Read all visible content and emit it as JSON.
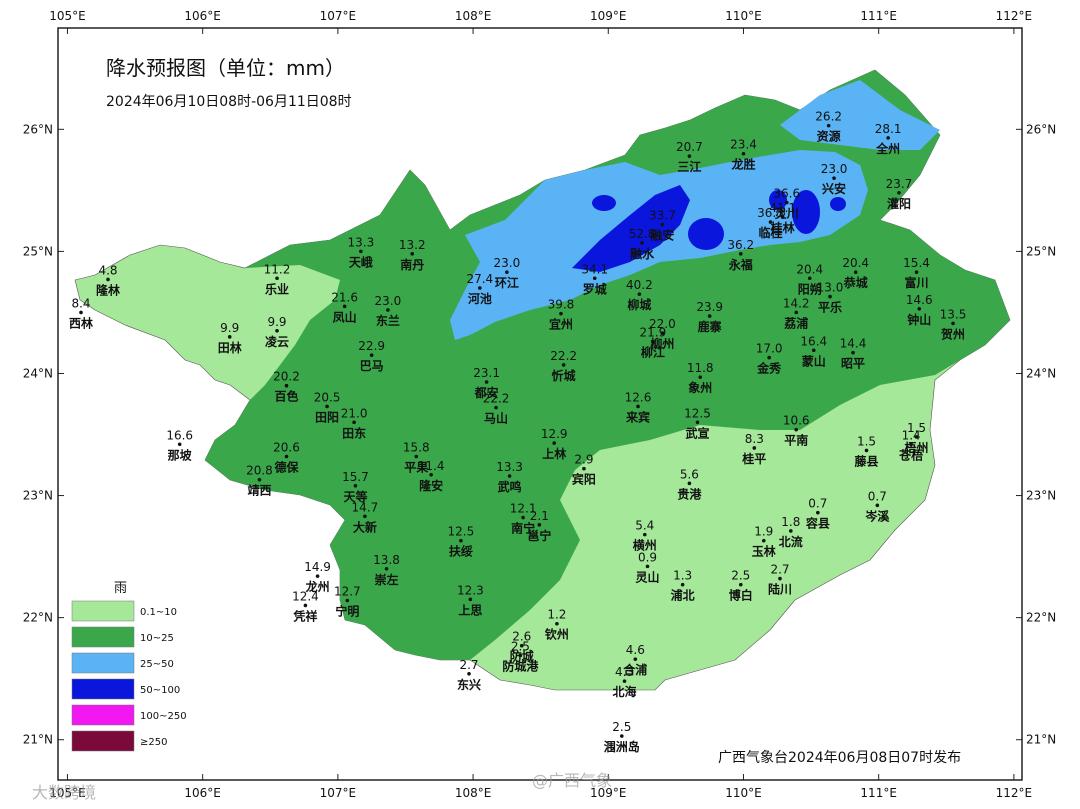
{
  "title": "降水预报图（单位：mm）",
  "subtitle": "2024年06月10日08时-06月11日08时",
  "footer": "广西气象台2024年06月08日07时发布",
  "watermarks": [
    "大数跨境",
    "@广西气象"
  ],
  "colors": {
    "level1": "#a6e89a",
    "level2": "#3aa84a",
    "level3": "#5ab3f5",
    "level4": "#0a16dc",
    "level5": "#f218f2",
    "level6": "#7a0a3a"
  },
  "legend": {
    "title": "雨",
    "items": [
      {
        "label": "0.1~10",
        "color": "#a6e89a"
      },
      {
        "label": "10~25",
        "color": "#3aa84a"
      },
      {
        "label": "25~50",
        "color": "#5ab3f5"
      },
      {
        "label": "50~100",
        "color": "#0a16dc"
      },
      {
        "label": "100~250",
        "color": "#f218f2"
      },
      {
        "label": "≥250",
        "color": "#7a0a3a"
      }
    ]
  },
  "axes": {
    "lon_ticks": [
      "105°E",
      "106°E",
      "107°E",
      "108°E",
      "109°E",
      "110°E",
      "111°E",
      "112°E"
    ],
    "lat_ticks": [
      "26°N",
      "25°N",
      "24°N",
      "23°N",
      "22°N",
      "21°N"
    ],
    "lon_range": [
      104.93,
      112.06
    ],
    "lat_range": [
      20.67,
      26.83
    ]
  },
  "stations": [
    {
      "name": "隆林",
      "value": "4.8",
      "lon": 105.3,
      "lat": 24.77
    },
    {
      "name": "西林",
      "value": "8.4",
      "lon": 105.1,
      "lat": 24.5
    },
    {
      "name": "田林",
      "value": "9.9",
      "lon": 106.2,
      "lat": 24.3
    },
    {
      "name": "乐业",
      "value": "11.2",
      "lon": 106.55,
      "lat": 24.78
    },
    {
      "name": "凌云",
      "value": "9.9",
      "lon": 106.55,
      "lat": 24.35
    },
    {
      "name": "天峨",
      "value": "13.3",
      "lon": 107.17,
      "lat": 25.0
    },
    {
      "name": "南丹",
      "value": "13.2",
      "lon": 107.55,
      "lat": 24.98
    },
    {
      "name": "凤山",
      "value": "21.6",
      "lon": 107.05,
      "lat": 24.55
    },
    {
      "name": "东兰",
      "value": "23.0",
      "lon": 107.37,
      "lat": 24.52
    },
    {
      "name": "巴马",
      "value": "22.9",
      "lon": 107.25,
      "lat": 24.15
    },
    {
      "name": "河池",
      "value": "27.4",
      "lon": 108.05,
      "lat": 24.7
    },
    {
      "name": "环江",
      "value": "23.0",
      "lon": 108.25,
      "lat": 24.83
    },
    {
      "name": "罗城",
      "value": "34.1",
      "lon": 108.9,
      "lat": 24.78
    },
    {
      "name": "融安",
      "value": "33.7",
      "lon": 109.4,
      "lat": 25.22
    },
    {
      "name": "融水",
      "value": "52.8",
      "lon": 109.25,
      "lat": 25.07
    },
    {
      "name": "宜州",
      "value": "39.8",
      "lon": 108.65,
      "lat": 24.49
    },
    {
      "name": "柳城",
      "value": "40.2",
      "lon": 109.23,
      "lat": 24.65
    },
    {
      "name": "柳州",
      "value": "22.0",
      "lon": 109.4,
      "lat": 24.33
    },
    {
      "name": "柳江",
      "value": "21.9",
      "lon": 109.33,
      "lat": 24.26
    },
    {
      "name": "鹿寨",
      "value": "23.9",
      "lon": 109.75,
      "lat": 24.47
    },
    {
      "name": "三江",
      "value": "20.7",
      "lon": 109.6,
      "lat": 25.78
    },
    {
      "name": "龙胜",
      "value": "23.4",
      "lon": 110.0,
      "lat": 25.8
    },
    {
      "name": "资源",
      "value": "26.2",
      "lon": 110.63,
      "lat": 26.03
    },
    {
      "name": "全州",
      "value": "28.1",
      "lon": 111.07,
      "lat": 25.93
    },
    {
      "name": "兴安",
      "value": "23.0",
      "lon": 110.67,
      "lat": 25.6
    },
    {
      "name": "灌阳",
      "value": "23.7",
      "lon": 111.15,
      "lat": 25.48
    },
    {
      "name": "灵川",
      "value": "36.6",
      "lon": 110.32,
      "lat": 25.4
    },
    {
      "name": "桂林",
      "value": "41.1",
      "lon": 110.29,
      "lat": 25.28
    },
    {
      "name": "临桂",
      "value": "36.3",
      "lon": 110.2,
      "lat": 25.24
    },
    {
      "name": "阳朔",
      "value": "20.4",
      "lon": 110.49,
      "lat": 24.78
    },
    {
      "name": "永福",
      "value": "36.2",
      "lon": 109.98,
      "lat": 24.98
    },
    {
      "name": "荔浦",
      "value": "14.2",
      "lon": 110.39,
      "lat": 24.5
    },
    {
      "name": "恭城",
      "value": "20.4",
      "lon": 110.83,
      "lat": 24.83
    },
    {
      "name": "平乐",
      "value": "13.0",
      "lon": 110.64,
      "lat": 24.63
    },
    {
      "name": "富川",
      "value": "15.4",
      "lon": 111.28,
      "lat": 24.83
    },
    {
      "name": "钟山",
      "value": "14.6",
      "lon": 111.3,
      "lat": 24.53
    },
    {
      "name": "贺州",
      "value": "13.5",
      "lon": 111.55,
      "lat": 24.41
    },
    {
      "name": "金秀",
      "value": "17.0",
      "lon": 110.19,
      "lat": 24.13
    },
    {
      "name": "蒙山",
      "value": "16.4",
      "lon": 110.52,
      "lat": 24.19
    },
    {
      "name": "昭平",
      "value": "14.4",
      "lon": 110.81,
      "lat": 24.17
    },
    {
      "name": "百色",
      "value": "20.2",
      "lon": 106.62,
      "lat": 23.9
    },
    {
      "name": "田阳",
      "value": "20.5",
      "lon": 106.92,
      "lat": 23.73
    },
    {
      "name": "田东",
      "value": "21.0",
      "lon": 107.12,
      "lat": 23.6
    },
    {
      "name": "那坡",
      "value": "16.6",
      "lon": 105.83,
      "lat": 23.42
    },
    {
      "name": "德保",
      "value": "20.6",
      "lon": 106.62,
      "lat": 23.32
    },
    {
      "name": "靖西",
      "value": "20.8",
      "lon": 106.42,
      "lat": 23.13
    },
    {
      "name": "天等",
      "value": "15.7",
      "lon": 107.13,
      "lat": 23.08
    },
    {
      "name": "平果",
      "value": "15.8",
      "lon": 107.58,
      "lat": 23.32
    },
    {
      "name": "隆安",
      "value": "11.4",
      "lon": 107.69,
      "lat": 23.17
    },
    {
      "name": "大新",
      "value": "14.7",
      "lon": 107.2,
      "lat": 22.83
    },
    {
      "name": "都安",
      "value": "23.1",
      "lon": 108.1,
      "lat": 23.93
    },
    {
      "name": "马山",
      "value": "22.2",
      "lon": 108.17,
      "lat": 23.72
    },
    {
      "name": "忻城",
      "value": "22.2",
      "lon": 108.67,
      "lat": 24.07
    },
    {
      "name": "象州",
      "value": "11.8",
      "lon": 109.68,
      "lat": 23.97
    },
    {
      "name": "来宾",
      "value": "12.6",
      "lon": 109.22,
      "lat": 23.73
    },
    {
      "name": "武宣",
      "value": "12.5",
      "lon": 109.66,
      "lat": 23.6
    },
    {
      "name": "上林",
      "value": "12.9",
      "lon": 108.6,
      "lat": 23.43
    },
    {
      "name": "宾阳",
      "value": "2.9",
      "lon": 108.82,
      "lat": 23.22
    },
    {
      "name": "武鸣",
      "value": "13.3",
      "lon": 108.27,
      "lat": 23.16
    },
    {
      "name": "桂平",
      "value": "8.3",
      "lon": 110.08,
      "lat": 23.39
    },
    {
      "name": "平南",
      "value": "10.6",
      "lon": 110.39,
      "lat": 23.54
    },
    {
      "name": "藤县",
      "value": "1.5",
      "lon": 110.91,
      "lat": 23.37
    },
    {
      "name": "梧州",
      "value": "1.5",
      "lon": 111.28,
      "lat": 23.48
    },
    {
      "name": "苍梧",
      "value": "1.4",
      "lon": 111.24,
      "lat": 23.42
    },
    {
      "name": "贵港",
      "value": "5.6",
      "lon": 109.6,
      "lat": 23.1
    },
    {
      "name": "岑溪",
      "value": "0.7",
      "lon": 110.99,
      "lat": 22.92
    },
    {
      "name": "容县",
      "value": "0.7",
      "lon": 110.55,
      "lat": 22.86
    },
    {
      "name": "北流",
      "value": "1.8",
      "lon": 110.35,
      "lat": 22.71
    },
    {
      "name": "玉林",
      "value": "1.9",
      "lon": 110.15,
      "lat": 22.63
    },
    {
      "name": "横州",
      "value": "5.4",
      "lon": 109.27,
      "lat": 22.68
    },
    {
      "name": "灵山",
      "value": "0.9",
      "lon": 109.29,
      "lat": 22.42
    },
    {
      "name": "浦北",
      "value": "1.3",
      "lon": 109.55,
      "lat": 22.27
    },
    {
      "name": "博白",
      "value": "2.5",
      "lon": 109.98,
      "lat": 22.27
    },
    {
      "name": "陆川",
      "value": "2.7",
      "lon": 110.27,
      "lat": 22.32
    },
    {
      "name": "南宁",
      "value": "12.1",
      "lon": 108.37,
      "lat": 22.82
    },
    {
      "name": "邕宁",
      "value": "2.1",
      "lon": 108.49,
      "lat": 22.76
    },
    {
      "name": "扶绥",
      "value": "12.5",
      "lon": 107.91,
      "lat": 22.63
    },
    {
      "name": "崇左",
      "value": "13.8",
      "lon": 107.36,
      "lat": 22.4
    },
    {
      "name": "龙州",
      "value": "14.9",
      "lon": 106.85,
      "lat": 22.34
    },
    {
      "name": "宁明",
      "value": "12.7",
      "lon": 107.07,
      "lat": 22.14
    },
    {
      "name": "凭祥",
      "value": "12.4",
      "lon": 106.76,
      "lat": 22.1
    },
    {
      "name": "上思",
      "value": "12.3",
      "lon": 107.98,
      "lat": 22.15
    },
    {
      "name": "钦州",
      "value": "1.2",
      "lon": 108.62,
      "lat": 21.95
    },
    {
      "name": "防城",
      "value": "2.6",
      "lon": 108.36,
      "lat": 21.77
    },
    {
      "name": "防城港",
      "value": "2.5",
      "lon": 108.35,
      "lat": 21.69
    },
    {
      "name": "东兴",
      "value": "2.7",
      "lon": 107.97,
      "lat": 21.54
    },
    {
      "name": "合浦",
      "value": "4.6",
      "lon": 109.2,
      "lat": 21.66
    },
    {
      "name": "北海",
      "value": "4.3",
      "lon": 109.12,
      "lat": 21.48
    },
    {
      "name": "涠洲岛",
      "value": "2.5",
      "lon": 109.1,
      "lat": 21.03
    }
  ]
}
